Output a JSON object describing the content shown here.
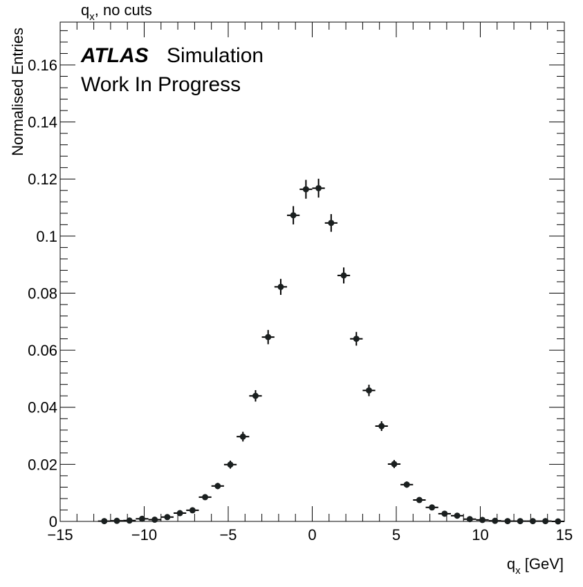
{
  "chart_data": {
    "type": "scatter",
    "title_main": "q",
    "title_sub": "x",
    "title_rest": ", no cuts",
    "atlas_label": "ATLAS",
    "atlas_suffix": "Simulation",
    "atlas_status": "Work In Progress",
    "xlabel_main": "q",
    "xlabel_sub": "x",
    "xlabel_rest": " [GeV]",
    "ylabel": "Normalised Entries",
    "xlim": [
      -15,
      15
    ],
    "ylim": [
      0,
      0.175
    ],
    "x_ticks": [
      -15,
      -10,
      -5,
      0,
      5,
      10,
      15
    ],
    "x_tick_labels": [
      "−15",
      "−10",
      "−5",
      "0",
      "5",
      "10",
      "15"
    ],
    "y_ticks": [
      0,
      0.02,
      0.04,
      0.06,
      0.08,
      0.1,
      0.12,
      0.14,
      0.16
    ],
    "y_tick_labels": [
      "0",
      "0.02",
      "0.04",
      "0.06",
      "0.08",
      "0.1",
      "0.12",
      "0.14",
      "0.16"
    ],
    "bin_half_width": 0.375,
    "series": [
      {
        "x": [
          -12.375,
          -11.625,
          -10.875,
          -10.125,
          -9.375,
          -8.625,
          -7.875,
          -7.125,
          -6.375,
          -5.625,
          -4.875,
          -4.125,
          -3.375,
          -2.625,
          -1.875,
          -1.125,
          -0.375,
          0.375,
          1.125,
          1.875,
          2.625,
          3.375,
          4.125,
          4.875,
          5.625,
          6.375,
          7.125,
          7.875,
          8.625,
          9.375,
          10.125,
          10.875,
          11.625,
          12.375,
          13.125,
          13.875,
          14.625
        ],
        "y": [
          0.0001,
          0.0002,
          0.0003,
          0.0009,
          0.0006,
          0.0015,
          0.0029,
          0.0039,
          0.0085,
          0.0124,
          0.0199,
          0.0297,
          0.044,
          0.0646,
          0.0822,
          0.1073,
          0.1164,
          0.1168,
          0.1046,
          0.0862,
          0.064,
          0.0459,
          0.0334,
          0.0201,
          0.0129,
          0.0075,
          0.0049,
          0.0027,
          0.002,
          0.0008,
          0.0005,
          0.0002,
          0.0001,
          0.0001,
          0.0001,
          0.0001,
          0.0
        ],
        "yerr": [
          0.0001,
          0.0001,
          0.0002,
          0.0003,
          0.0003,
          0.0004,
          0.0006,
          0.0007,
          0.0009,
          0.0011,
          0.0014,
          0.0017,
          0.002,
          0.0025,
          0.0028,
          0.0032,
          0.0033,
          0.0033,
          0.0031,
          0.0028,
          0.0024,
          0.002,
          0.0017,
          0.0014,
          0.0011,
          0.0008,
          0.0007,
          0.0005,
          0.0004,
          0.0003,
          0.0002,
          0.0001,
          0.0001,
          0.0001,
          0.0001,
          0.0001,
          0.0
        ]
      }
    ],
    "colors": {
      "marker": "#1a1f1f",
      "axis": "#000000"
    },
    "grid": false,
    "legend": "none"
  }
}
